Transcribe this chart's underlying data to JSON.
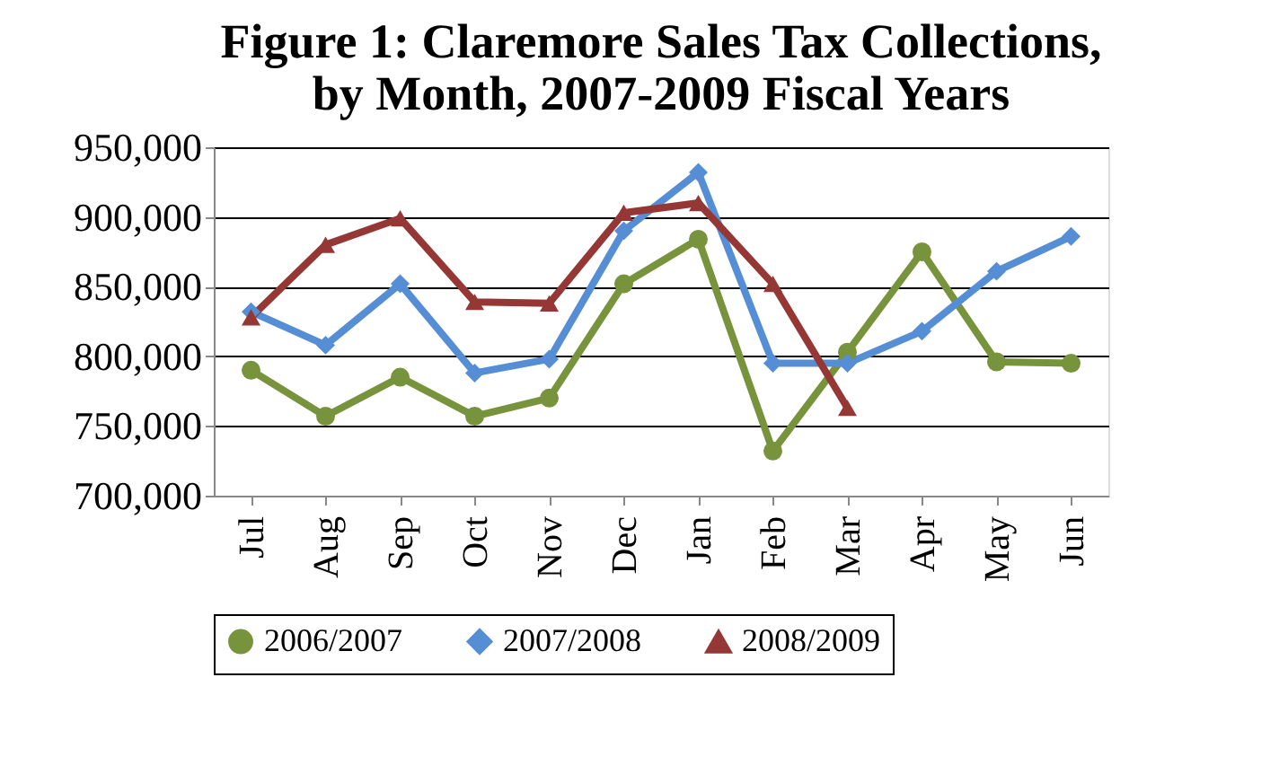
{
  "chart_data": {
    "type": "line",
    "title": "Figure 1: Claremore Sales Tax Collections,\nby Month, 2007-2009 Fiscal Years",
    "categories": [
      "Jul",
      "Aug",
      "Sep",
      "Oct",
      "Nov",
      "Dec",
      "Jan",
      "Feb",
      "Mar",
      "Apr",
      "May",
      "Jun"
    ],
    "series": [
      {
        "name": "2006/2007",
        "color": "#77933c",
        "marker": "circle",
        "values": [
          790000,
          757000,
          785000,
          757000,
          770000,
          852000,
          884000,
          732000,
          803000,
          875000,
          796000,
          795000
        ]
      },
      {
        "name": "2007/2008",
        "color": "#558ed5",
        "marker": "diamond",
        "values": [
          832000,
          808000,
          852000,
          788000,
          798000,
          890000,
          932000,
          795000,
          795000,
          818000,
          861000,
          886000
        ]
      },
      {
        "name": "2008/2009",
        "color": "#953735",
        "marker": "triangle",
        "values": [
          828000,
          880000,
          899000,
          839000,
          838000,
          903000,
          910000,
          852000,
          763000,
          null,
          null,
          null
        ]
      }
    ],
    "ylim": [
      700000,
      950000
    ],
    "yticks": [
      {
        "value": 700000,
        "label": "700,000"
      },
      {
        "value": 750000,
        "label": "750,000"
      },
      {
        "value": 800000,
        "label": "800,000"
      },
      {
        "value": 850000,
        "label": "850,000"
      },
      {
        "value": 900000,
        "label": "900,000"
      },
      {
        "value": 950000,
        "label": "950,000"
      }
    ],
    "grid": "y",
    "legend": "bottom"
  }
}
